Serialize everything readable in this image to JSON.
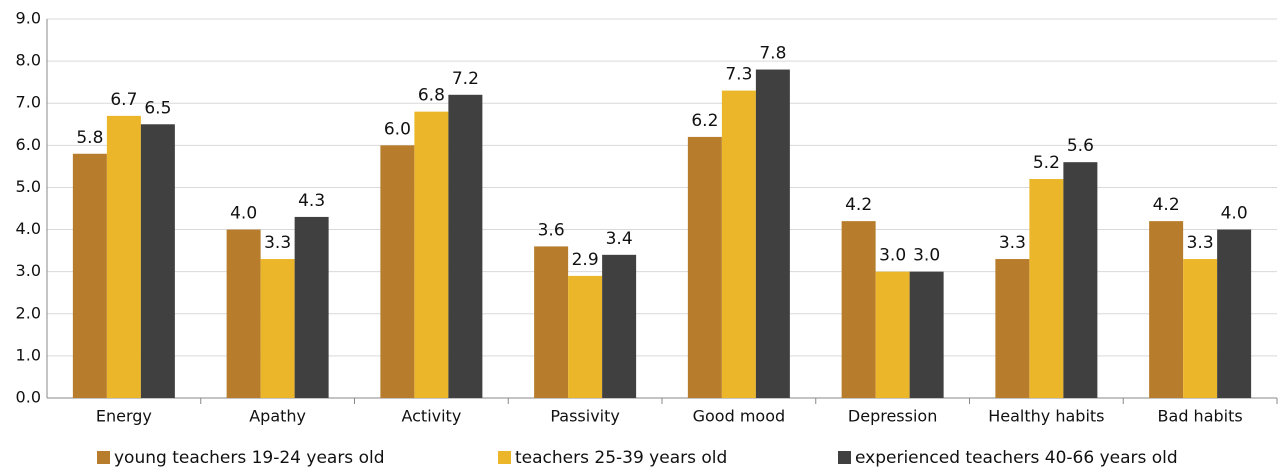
{
  "chart_data": {
    "type": "bar",
    "categories": [
      "Energy",
      "Apathy",
      "Activity",
      "Passivity",
      "Good mood",
      "Depression",
      "Healthy habits",
      "Bad habits"
    ],
    "series": [
      {
        "name": "young teachers 19-24 years old",
        "color": "#b87d2c",
        "values": [
          5.8,
          4.0,
          6.0,
          3.6,
          6.2,
          4.2,
          3.3,
          4.2
        ],
        "value_labels": [
          "5.8",
          "4.0",
          "6.0",
          "3.6",
          "6.2",
          "4.2",
          "3.3",
          "4.2"
        ]
      },
      {
        "name": "teachers 25-39 years old",
        "color": "#ebb62a",
        "values": [
          6.7,
          3.3,
          6.8,
          2.9,
          7.3,
          3.0,
          5.2,
          3.3
        ],
        "value_labels": [
          "6.7",
          "3.3",
          "6.8",
          "2.9",
          "7.3",
          "3.0",
          "5.2",
          "3.3"
        ]
      },
      {
        "name": "experienced teachers 40-66 years old",
        "color": "#404040",
        "values": [
          6.5,
          4.3,
          7.2,
          3.4,
          7.8,
          3.0,
          5.6,
          4.0
        ],
        "value_labels": [
          "6.5",
          "4.3",
          "7.2",
          "3.4",
          "7.8",
          "3.0",
          "5.6",
          "4.0"
        ]
      }
    ],
    "ylim": [
      0,
      9
    ],
    "yticks": [
      {
        "value": 0,
        "label": "0.0"
      },
      {
        "value": 1,
        "label": "1.0"
      },
      {
        "value": 2,
        "label": "2.0"
      },
      {
        "value": 3,
        "label": "3.0"
      },
      {
        "value": 4,
        "label": "4.0"
      },
      {
        "value": 5,
        "label": "5.0"
      },
      {
        "value": 6,
        "label": "6.0"
      },
      {
        "value": 7,
        "label": "7.0"
      },
      {
        "value": 8,
        "label": "8.0"
      },
      {
        "value": 9,
        "label": "9.0"
      }
    ],
    "grid": true,
    "legend": "bottom"
  }
}
